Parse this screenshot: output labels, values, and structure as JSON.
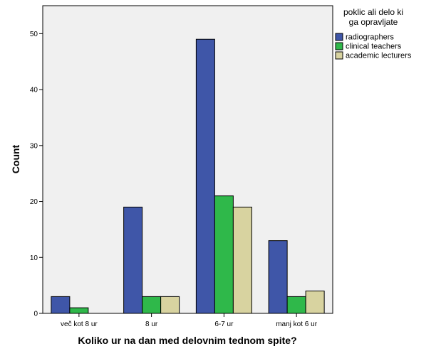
{
  "chart_data": {
    "type": "bar",
    "title": "",
    "xlabel": "Koliko ur na dan med delovnim tednom spite?",
    "ylabel": "Count",
    "categories": [
      "več kot 8 ur",
      "8 ur",
      "6-7 ur",
      "manj kot 6 ur"
    ],
    "series": [
      {
        "name": "radiographers",
        "values": [
          3,
          19,
          49,
          13
        ],
        "color": "#3f56a8"
      },
      {
        "name": "clinical teachers",
        "values": [
          1,
          3,
          21,
          3
        ],
        "color": "#2fb84a"
      },
      {
        "name": "academic lecturers",
        "values": [
          0,
          3,
          19,
          4
        ],
        "color": "#d8d3a0"
      }
    ],
    "ylim": [
      0,
      55
    ],
    "yticks": [
      0,
      10,
      20,
      30,
      40,
      50
    ],
    "grid": false,
    "plot_background": "#f0f0f0",
    "legend": {
      "title_lines": [
        "poklic ali delo ki",
        "ga opravljate"
      ],
      "position": "right"
    }
  }
}
